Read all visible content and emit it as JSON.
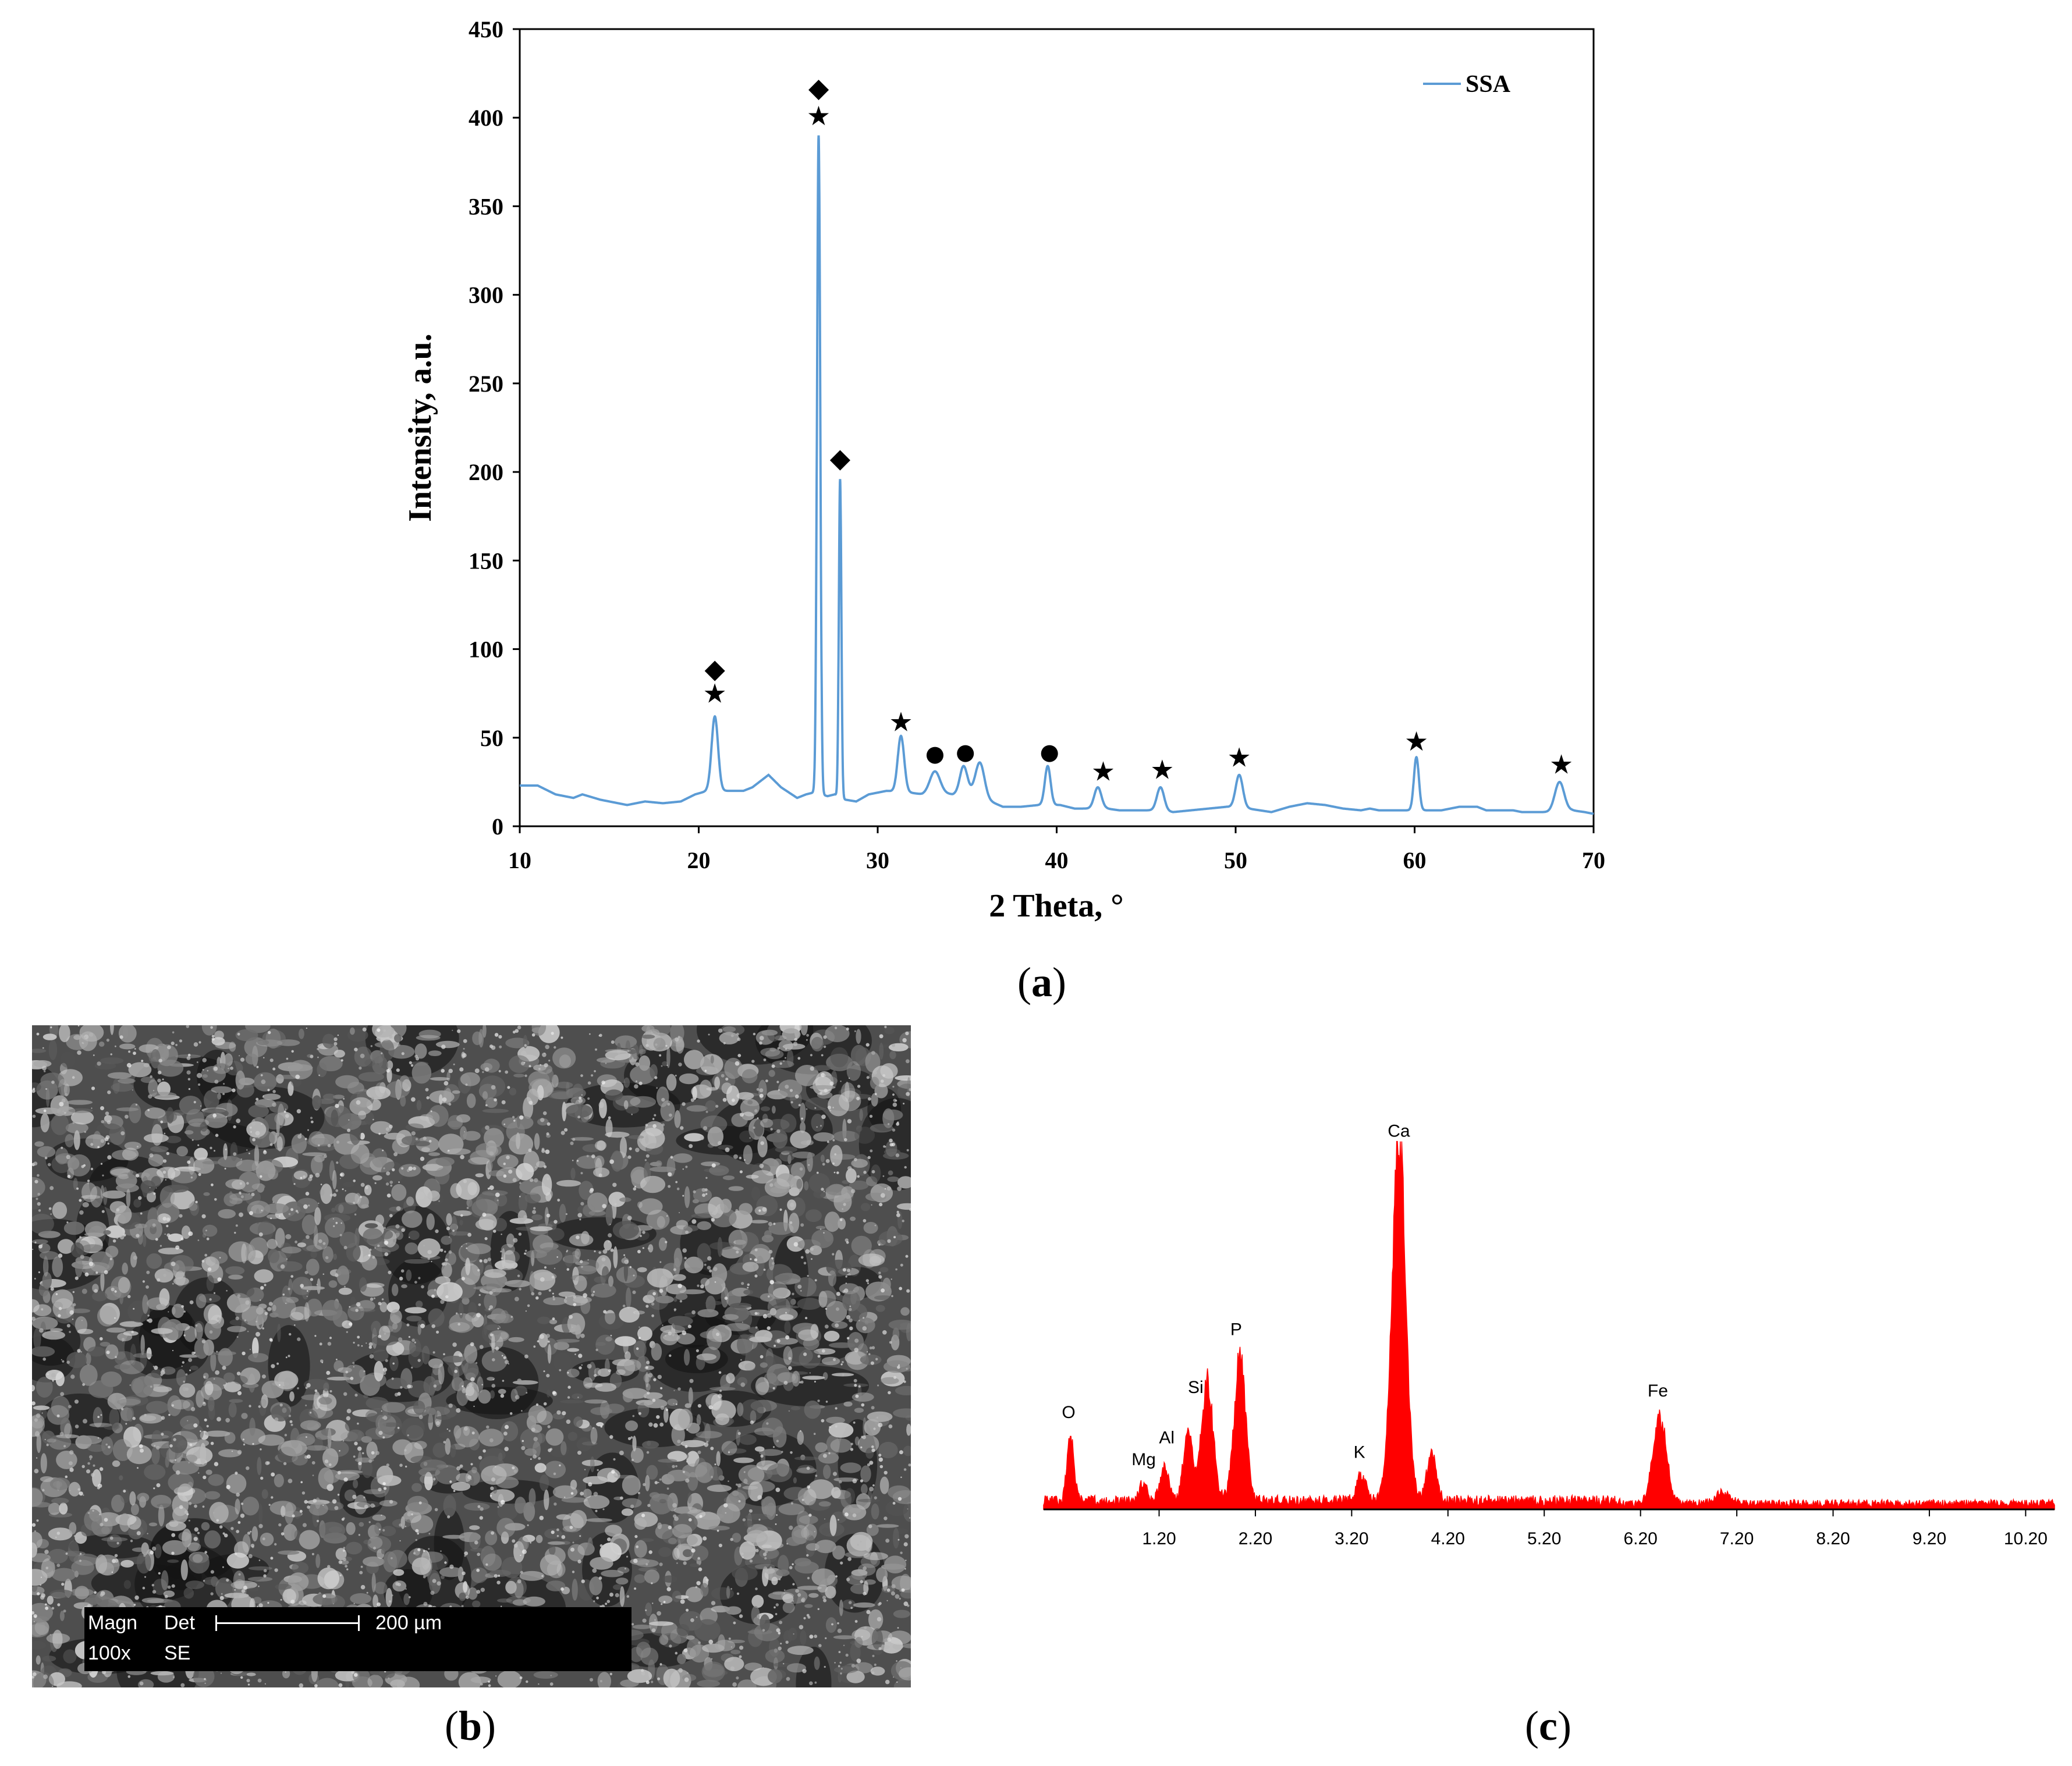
{
  "panels": {
    "a": {
      "label": "a"
    },
    "b": {
      "label": "b"
    },
    "c": {
      "label": "c"
    }
  },
  "chart_data": [
    {
      "id": "xrd",
      "type": "line",
      "xlabel": "2 Theta, °",
      "ylabel": "Intensity, a.u.",
      "xlim": [
        10,
        70
      ],
      "ylim": [
        0,
        450
      ],
      "xticks": [
        10,
        20,
        30,
        40,
        50,
        60,
        70
      ],
      "yticks": [
        0,
        50,
        100,
        150,
        200,
        250,
        300,
        350,
        400,
        450
      ],
      "grid": false,
      "legend": "top-right",
      "line_color": "#5b9bd5",
      "series": [
        {
          "name": "SSA",
          "baseline": [
            [
              10,
              23
            ],
            [
              11,
              23
            ],
            [
              12,
              18
            ],
            [
              13,
              16
            ],
            [
              13.5,
              18
            ],
            [
              14.5,
              15
            ],
            [
              16,
              12
            ],
            [
              17,
              14
            ],
            [
              18,
              13
            ],
            [
              19,
              14
            ],
            [
              19.8,
              18
            ],
            [
              20.5,
              20
            ],
            [
              21.3,
              20
            ],
            [
              22.5,
              20
            ],
            [
              23,
              22
            ],
            [
              23.9,
              29
            ],
            [
              24.6,
              22
            ],
            [
              25.5,
              16
            ],
            [
              26,
              18
            ],
            [
              26.4,
              19
            ],
            [
              27.2,
              17
            ],
            [
              27.6,
              18
            ],
            [
              28.2,
              15
            ],
            [
              28.8,
              14
            ],
            [
              29.5,
              18
            ],
            [
              30.5,
              20
            ],
            [
              31.8,
              19
            ],
            [
              32.5,
              18
            ],
            [
              33.3,
              19
            ],
            [
              34.2,
              18
            ],
            [
              35,
              20
            ],
            [
              36.3,
              14
            ],
            [
              37,
              11
            ],
            [
              38,
              11
            ],
            [
              39,
              12
            ],
            [
              40.2,
              12
            ],
            [
              41,
              10
            ],
            [
              42,
              10
            ],
            [
              42.8,
              10
            ],
            [
              43.5,
              9
            ],
            [
              45,
              9
            ],
            [
              45.8,
              9
            ],
            [
              46.5,
              8
            ],
            [
              47.5,
              9
            ],
            [
              48.5,
              10
            ],
            [
              49.5,
              11
            ],
            [
              50.7,
              10
            ],
            [
              52,
              8
            ],
            [
              53,
              11
            ],
            [
              54,
              13
            ],
            [
              55,
              12
            ],
            [
              56,
              10
            ],
            [
              57,
              9
            ],
            [
              57.5,
              10
            ],
            [
              58,
              9
            ],
            [
              59.5,
              9
            ],
            [
              60.5,
              9
            ],
            [
              61.5,
              9
            ],
            [
              62.5,
              11
            ],
            [
              63.5,
              11
            ],
            [
              64,
              9
            ],
            [
              65.5,
              9
            ],
            [
              66,
              8
            ],
            [
              67.5,
              8
            ],
            [
              68.8,
              9
            ],
            [
              69.5,
              8
            ],
            [
              70,
              7
            ]
          ],
          "peaks": [
            [
              20.9,
              62,
              0.18
            ],
            [
              26.7,
              390,
              0.09
            ],
            [
              27.9,
              196,
              0.07
            ],
            [
              31.3,
              51,
              0.18
            ],
            [
              33.2,
              31,
              0.28
            ],
            [
              34.8,
              34,
              0.2
            ],
            [
              35.7,
              36,
              0.25
            ],
            [
              39.5,
              34,
              0.16
            ],
            [
              42.3,
              22,
              0.2
            ],
            [
              45.8,
              22,
              0.2
            ],
            [
              50.2,
              29,
              0.2
            ],
            [
              60.1,
              39,
              0.14
            ],
            [
              68.1,
              25,
              0.26
            ]
          ]
        }
      ],
      "annotations": [
        {
          "symbol": "★",
          "x": 20.9,
          "y": 75
        },
        {
          "symbol": "◆",
          "x": 20.9,
          "y": 89
        },
        {
          "symbol": "★",
          "x": 26.7,
          "y": 401
        },
        {
          "symbol": "◆",
          "x": 26.7,
          "y": 417
        },
        {
          "symbol": "◆",
          "x": 27.9,
          "y": 208
        },
        {
          "symbol": "★",
          "x": 31.3,
          "y": 59
        },
        {
          "symbol": "●",
          "x": 33.2,
          "y": 42
        },
        {
          "symbol": "●",
          "x": 34.9,
          "y": 43
        },
        {
          "symbol": "●",
          "x": 39.6,
          "y": 43
        },
        {
          "symbol": "★",
          "x": 42.6,
          "y": 31
        },
        {
          "symbol": "★",
          "x": 45.9,
          "y": 32
        },
        {
          "symbol": "★",
          "x": 50.2,
          "y": 39
        },
        {
          "symbol": "★",
          "x": 60.1,
          "y": 48
        },
        {
          "symbol": "★",
          "x": 68.2,
          "y": 35
        }
      ]
    },
    {
      "id": "eds",
      "type": "area",
      "xlim": [
        0,
        10.5
      ],
      "xticks": [
        "1.20",
        "2.20",
        "3.20",
        "4.20",
        "5.20",
        "6.20",
        "7.20",
        "8.20",
        "9.20",
        "10.20"
      ],
      "fill_color": "#ff0000",
      "relative_intensity": {
        "noise": 0.03,
        "peaks": [
          [
            0.28,
            0.19,
            0.035
          ],
          [
            1.04,
            0.05,
            0.04
          ],
          [
            1.26,
            0.1,
            0.045
          ],
          [
            1.5,
            0.2,
            0.045
          ],
          [
            1.7,
            0.33,
            0.06
          ],
          [
            2.04,
            0.4,
            0.06
          ],
          [
            3.3,
            0.07,
            0.05
          ],
          [
            3.69,
            1.0,
            0.07
          ],
          [
            4.03,
            0.13,
            0.05
          ],
          [
            6.4,
            0.24,
            0.07
          ],
          [
            7.05,
            0.03,
            0.08
          ]
        ]
      },
      "element_labels": [
        {
          "name": "O",
          "x": 0.26,
          "h": 0.24
        },
        {
          "name": "Mg",
          "x": 1.04,
          "h": 0.11
        },
        {
          "name": "Al",
          "x": 1.28,
          "h": 0.17
        },
        {
          "name": "Si",
          "x": 1.58,
          "h": 0.31
        },
        {
          "name": "P",
          "x": 2.0,
          "h": 0.47
        },
        {
          "name": "K",
          "x": 3.28,
          "h": 0.13
        },
        {
          "name": "Ca",
          "x": 3.69,
          "h": 1.02
        },
        {
          "name": "Fe",
          "x": 6.38,
          "h": 0.3
        }
      ]
    }
  ],
  "sem": {
    "magn_label": "Magn",
    "det_label": "Det",
    "scale_label": "200 µm",
    "magn_value": "100x",
    "det_value": "SE"
  }
}
